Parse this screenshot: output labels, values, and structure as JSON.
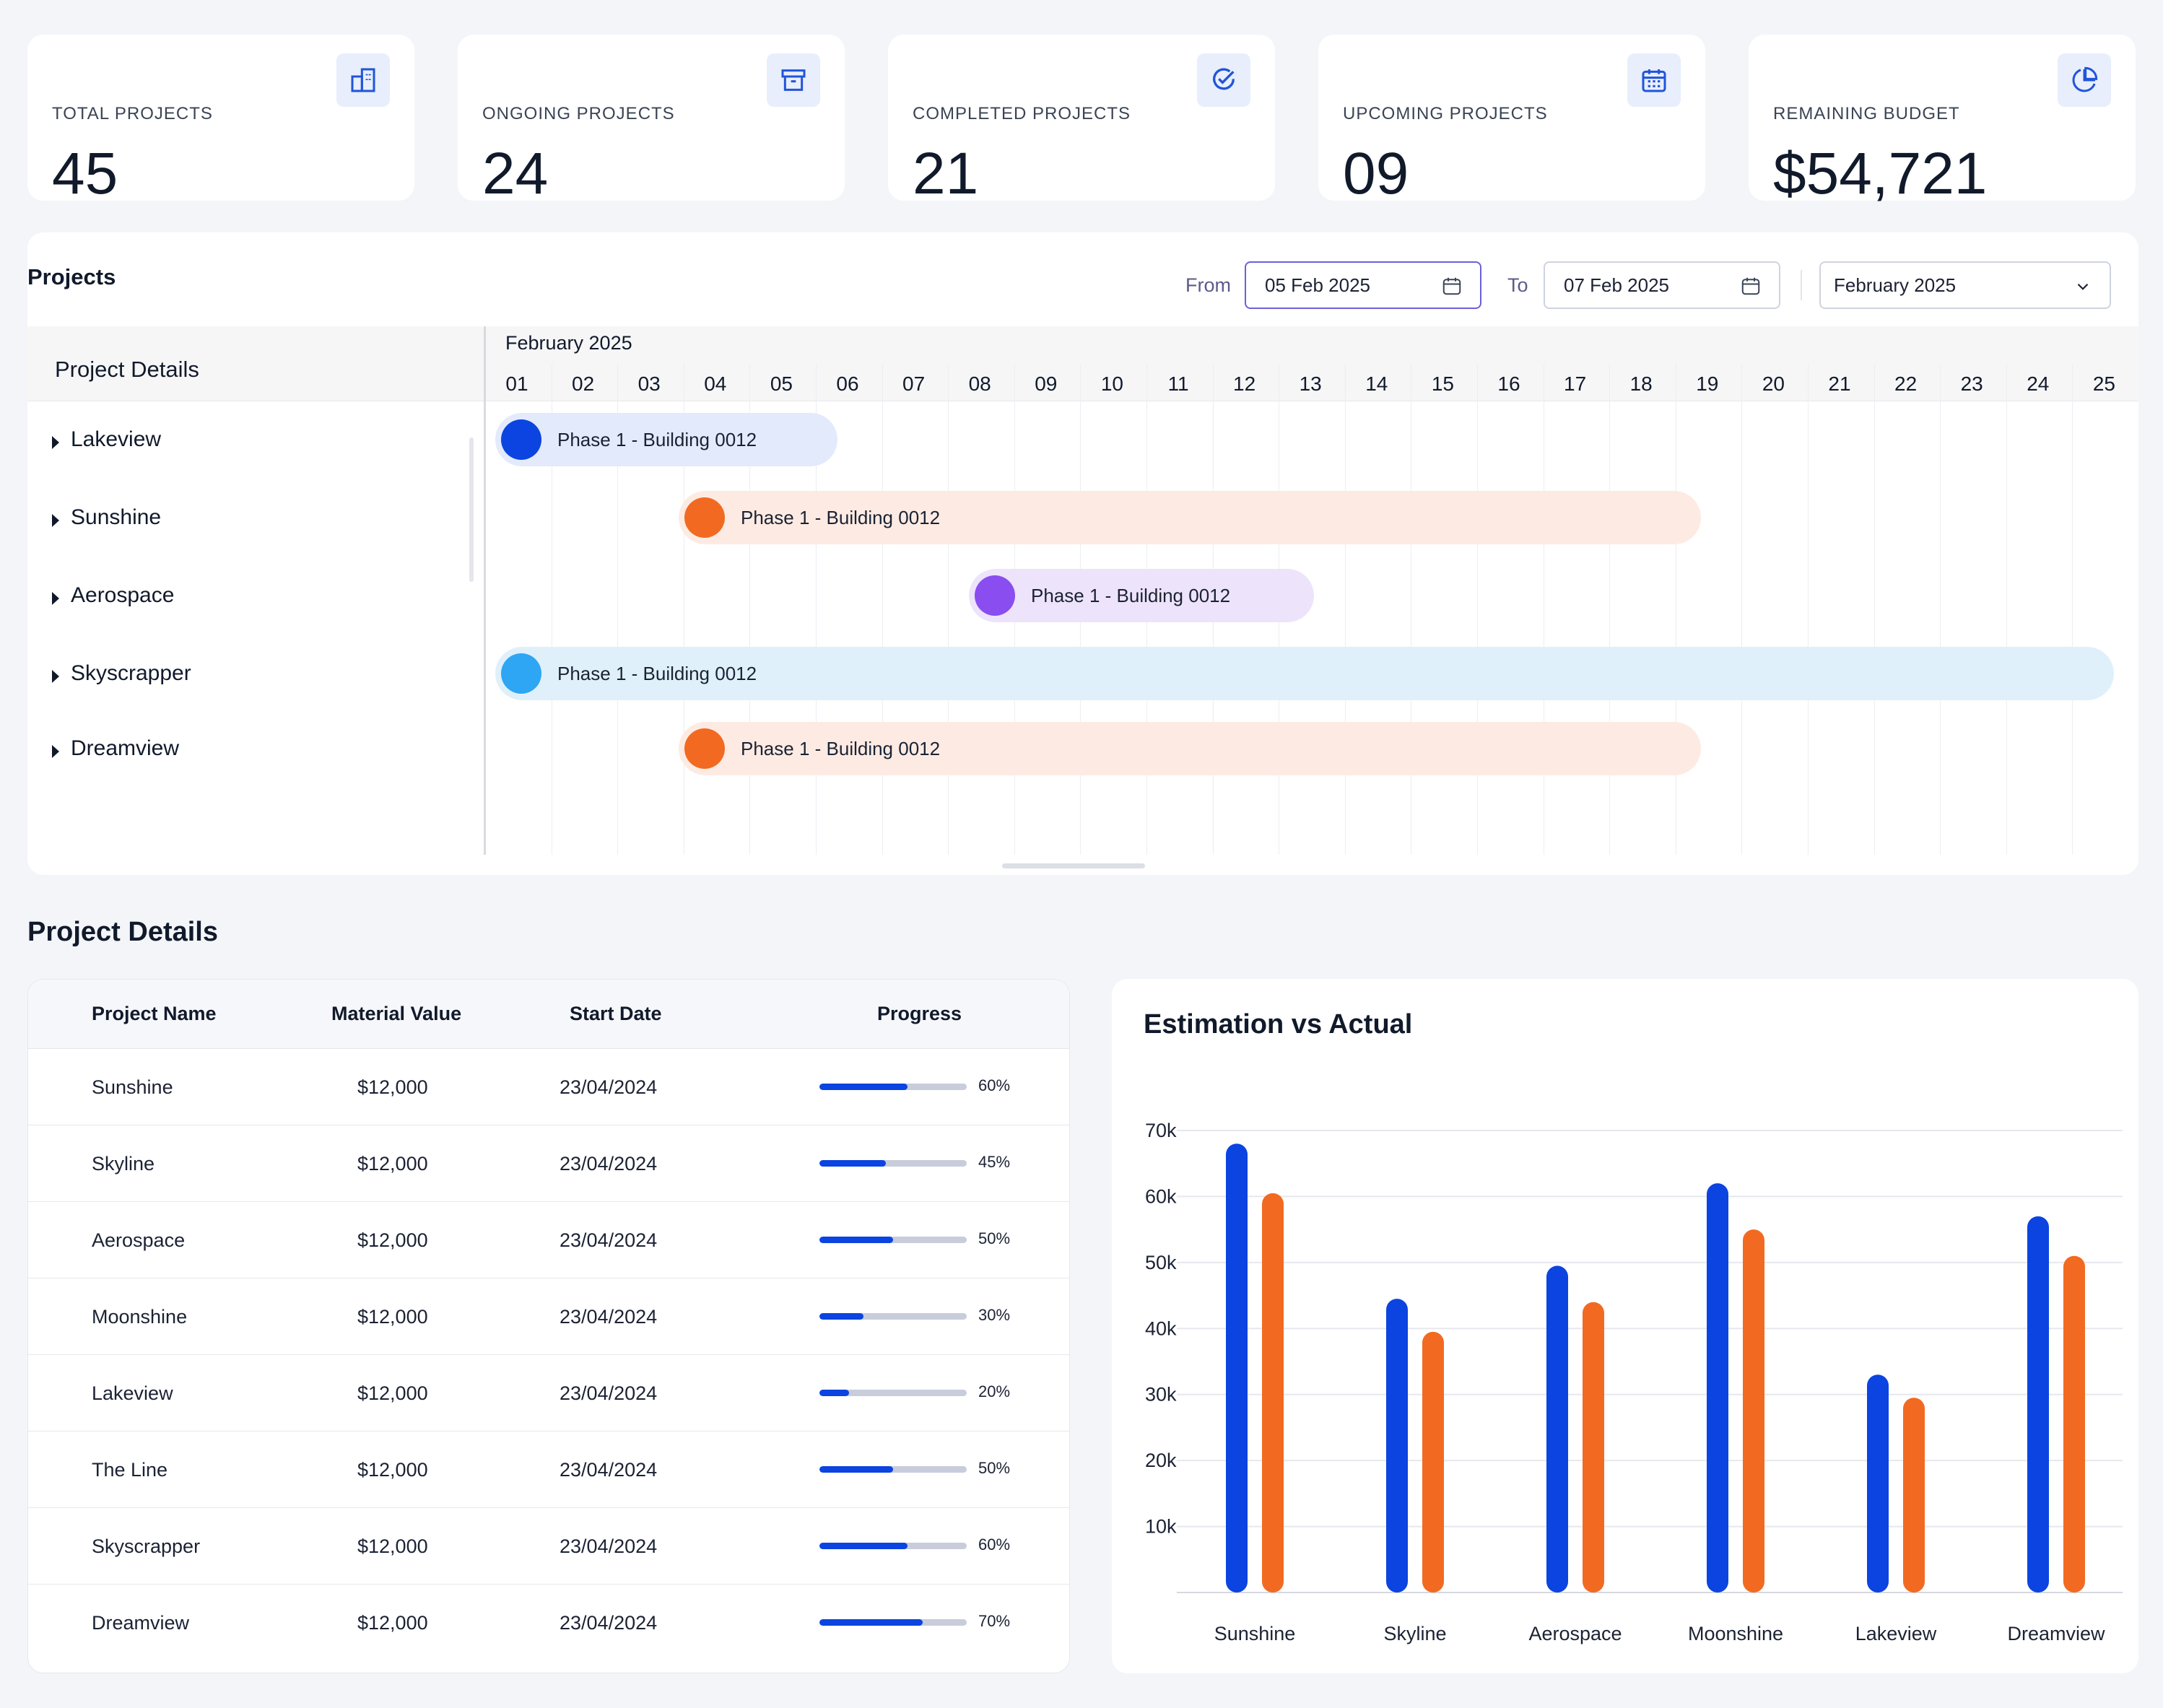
{
  "stats": [
    {
      "label": "TOTAL PROJECTS",
      "value": "45",
      "icon": "building-icon"
    },
    {
      "label": "ONGOING PROJECTS",
      "value": "24",
      "icon": "archive-box-icon"
    },
    {
      "label": "COMPLETED PROJECTS",
      "value": "21",
      "icon": "check-circle-icon"
    },
    {
      "label": "UPCOMING PROJECTS",
      "value": "09",
      "icon": "calendar-icon"
    },
    {
      "label": "REMAINING BUDGET",
      "value": "$54,721",
      "icon": "pie-chart-icon"
    }
  ],
  "projects_panel": {
    "title": "Projects",
    "from_label": "From",
    "from_value": "05 Feb 2025",
    "to_label": "To",
    "to_value": "07 Feb 2025",
    "month_select": "February 2025",
    "left_header": "Project Details",
    "timeline_month": "February 2025",
    "days": [
      "01",
      "02",
      "03",
      "04",
      "05",
      "06",
      "07",
      "08",
      "09",
      "10",
      "11",
      "12",
      "13",
      "14",
      "15",
      "16",
      "17",
      "18",
      "19",
      "20",
      "21",
      "22",
      "23",
      "24",
      "25"
    ],
    "rows": [
      {
        "name": "Lakeview",
        "bar_label": "Phase 1 - Building 0012",
        "dot_color": "#0b44e0",
        "bg_color": "#e3eafc"
      },
      {
        "name": "Sunshine",
        "bar_label": "Phase 1 - Building 0012",
        "dot_color": "#f26a21",
        "bg_color": "#fdebe3"
      },
      {
        "name": "Aerospace",
        "bar_label": "Phase 1 - Building 0012",
        "dot_color": "#8a4df0",
        "bg_color": "#ede3fb"
      },
      {
        "name": "Skyscrapper",
        "bar_label": "Phase 1 - Building 0012",
        "dot_color": "#2ea6f4",
        "bg_color": "#dff0fb"
      },
      {
        "name": "Dreamview",
        "bar_label": "Phase 1 - Building 0012",
        "dot_color": "#f26a21",
        "bg_color": "#fdebe3"
      }
    ]
  },
  "details": {
    "title": "Project Details",
    "columns": [
      "Project Name",
      "Material Value",
      "Start Date",
      "Progress"
    ],
    "rows": [
      {
        "name": "Sunshine",
        "value": "$12,000",
        "date": "23/04/2024",
        "progress": 0.6,
        "progress_text": "60%"
      },
      {
        "name": "Skyline",
        "value": "$12,000",
        "date": "23/04/2024",
        "progress": 0.45,
        "progress_text": "45%"
      },
      {
        "name": "Aerospace",
        "value": "$12,000",
        "date": "23/04/2024",
        "progress": 0.5,
        "progress_text": "50%"
      },
      {
        "name": "Moonshine",
        "value": "$12,000",
        "date": "23/04/2024",
        "progress": 0.3,
        "progress_text": "30%"
      },
      {
        "name": "Lakeview",
        "value": "$12,000",
        "date": "23/04/2024",
        "progress": 0.2,
        "progress_text": "20%"
      },
      {
        "name": "The Line",
        "value": "$12,000",
        "date": "23/04/2024",
        "progress": 0.5,
        "progress_text": "50%"
      },
      {
        "name": "Skyscrapper",
        "value": "$12,000",
        "date": "23/04/2024",
        "progress": 0.6,
        "progress_text": "60%"
      },
      {
        "name": "Dreamview",
        "value": "$12,000",
        "date": "23/04/2024",
        "progress": 0.7,
        "progress_text": "70%"
      }
    ]
  },
  "colors": {
    "accent": "#0b44e0",
    "secondary": "#f26a21"
  },
  "chart_data": {
    "type": "bar",
    "title": "Estimation vs Actual",
    "categories": [
      "Sunshine",
      "Skyline",
      "Aerospace",
      "Moonshine",
      "Lakeview",
      "Dreamview"
    ],
    "series": [
      {
        "values": [
          68000,
          44500,
          49500,
          62000,
          33000,
          57000
        ],
        "color": "#0b44e0"
      },
      {
        "values": [
          60500,
          39500,
          44000,
          55000,
          29500,
          51000
        ],
        "color": "#f26a21"
      }
    ],
    "yticks": [
      "10k",
      "20k",
      "30k",
      "40k",
      "50k",
      "60k",
      "70k"
    ],
    "ylim": [
      0,
      70000
    ],
    "grid": true
  }
}
